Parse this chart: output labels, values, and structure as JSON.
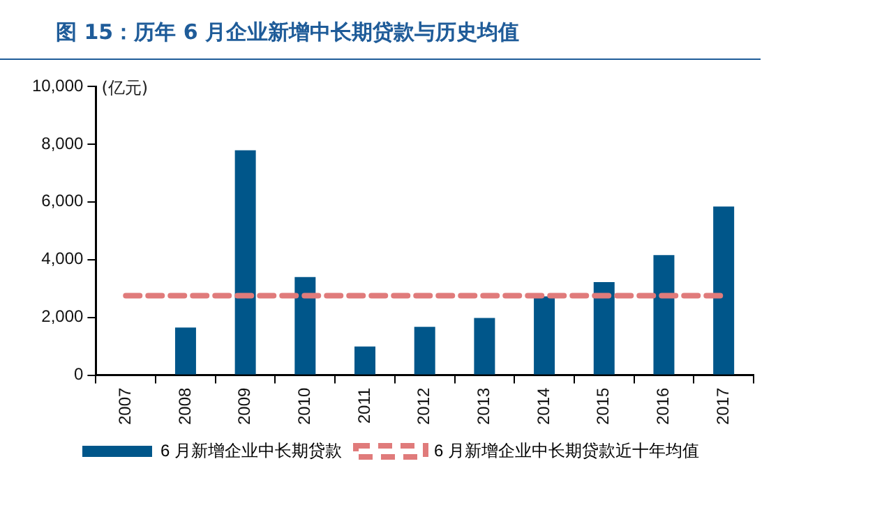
{
  "chart_data": {
    "type": "bar",
    "title": "图 15：历年 6 月企业新增中长期贷款与历史均值",
    "ylabel": "(亿元)",
    "categories": [
      "2007",
      "2008",
      "2009",
      "2010",
      "2011",
      "2012",
      "2013",
      "2014",
      "2015",
      "2016",
      "2017"
    ],
    "series": [
      {
        "name": "6 月新增企业中长期贷款",
        "color": "#00568a",
        "values": [
          null,
          1650,
          7790,
          3400,
          990,
          1670,
          1980,
          2730,
          3220,
          4160,
          5840
        ]
      },
      {
        "name": "6 月新增企业中长期贷款近十年均值",
        "type": "line",
        "color": "#e07b7b",
        "line_style": "dashed",
        "marker": "none",
        "values": [
          2750,
          2750,
          2750,
          2750,
          2750,
          2750,
          2750,
          2750,
          2750,
          2750,
          2750
        ]
      }
    ],
    "ylim": [
      0,
      10000
    ],
    "yticks": [
      {
        "value": 0,
        "label": "0"
      },
      {
        "value": 2000,
        "label": "2,000"
      },
      {
        "value": 4000,
        "label": "4,000"
      },
      {
        "value": 6000,
        "label": "6,000"
      },
      {
        "value": 8000,
        "label": "8,000"
      },
      {
        "value": 10000,
        "label": "10,000"
      }
    ],
    "grid": false,
    "legend": "bottom"
  }
}
